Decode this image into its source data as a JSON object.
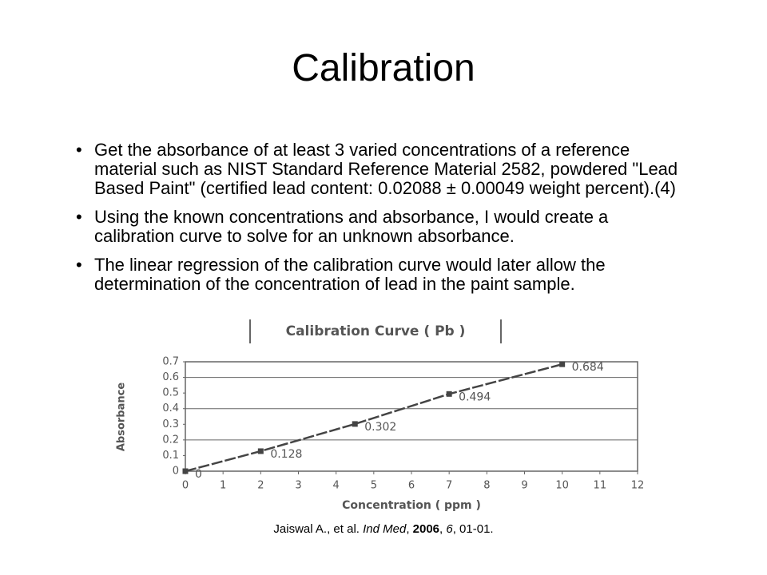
{
  "slide": {
    "title": "Calibration",
    "bullets": [
      "Get the absorbance of at least 3 varied concentrations of a reference material such as NIST Standard Reference Material 2582, powdered \"Lead Based Paint\" (certified lead content: 0.02088 ± 0.00049 weight percent).(4)",
      "Using the known concentrations and absorbance, I would create a calibration curve to solve for an unknown absorbance.",
      "The linear regression of the calibration curve would later allow the determination of the concentration of lead in the paint sample."
    ],
    "citation": [
      "Jaiswal A., et al. ",
      "Ind Med",
      ", ",
      "2006",
      ", ",
      "6",
      ", 01-01."
    ]
  },
  "chart_data": {
    "type": "line",
    "title": "Calibration Curve ( Pb )",
    "x_label": "Concentration ( ppm )",
    "y_label": "Absorbance",
    "x": [
      0,
      2,
      4.5,
      7,
      10
    ],
    "values": [
      0,
      0.128,
      0.302,
      0.494,
      0.684
    ],
    "color": "#444444",
    "xlim": [
      0,
      12
    ],
    "xticks": [
      0,
      1,
      2,
      3,
      4,
      5,
      6,
      7,
      8,
      9,
      10,
      11,
      12
    ],
    "ylim": [
      0,
      0.7
    ],
    "yticks": [
      0,
      0.1,
      0.2,
      0.3,
      0.4,
      0.5,
      0.6,
      0.7
    ],
    "ygrid": [
      0.2,
      0.4,
      0.6
    ]
  }
}
